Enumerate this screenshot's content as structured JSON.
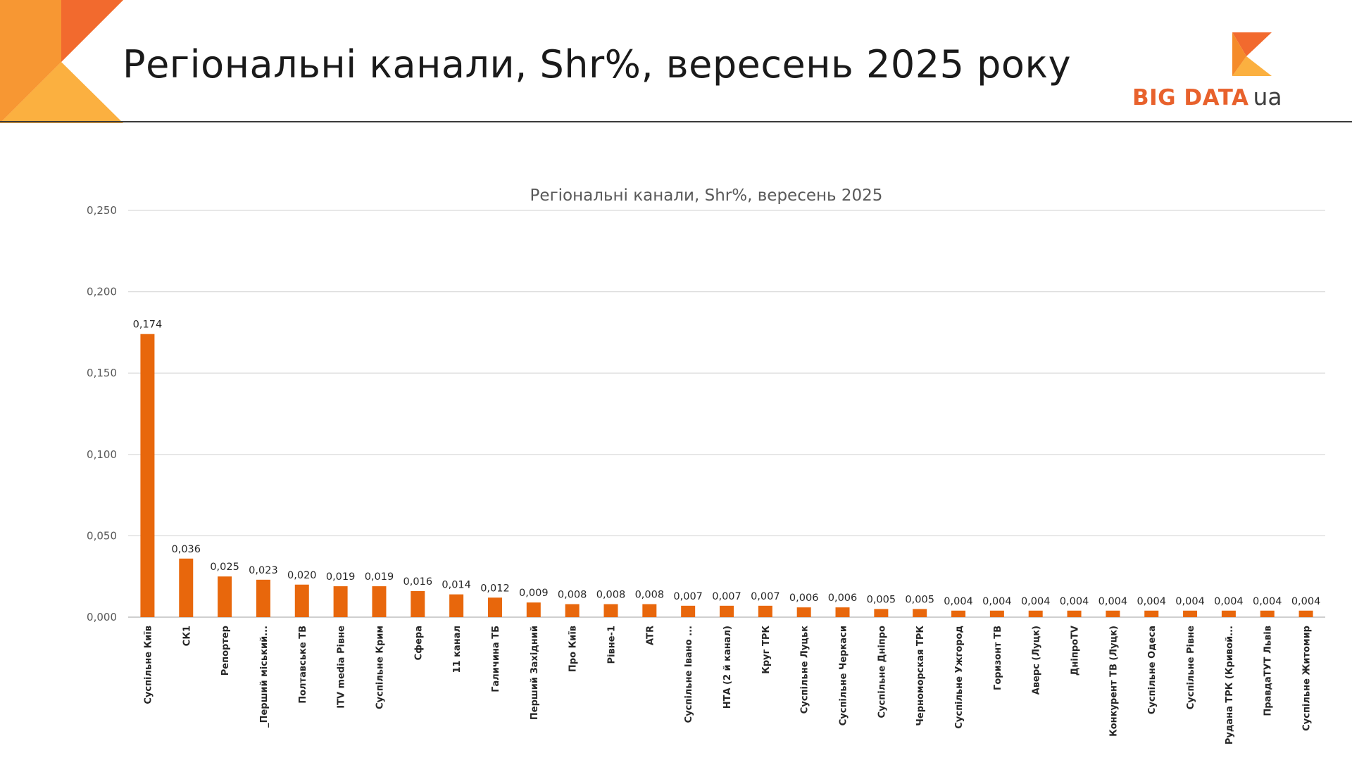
{
  "slide": {
    "title": "Регіональні канали, Shr%, вересень 2025 року"
  },
  "logo": {
    "brand": "BIG DATA",
    "suffix": "ua",
    "colors": {
      "primary": "#e8612c",
      "secondary": "#f7a643",
      "text": "#3d3d3d"
    }
  },
  "chart_data": {
    "type": "bar",
    "title": "Регіональні канали, Shr%, вересень 2025",
    "xlabel": "",
    "ylabel": "",
    "ylim": [
      0,
      0.25
    ],
    "yticks": [
      0,
      0.05,
      0.1,
      0.15,
      0.2,
      0.25
    ],
    "ytick_labels": [
      "0,000",
      "0,050",
      "0,100",
      "0,150",
      "0,200",
      "0,250"
    ],
    "grid": true,
    "bar_color": "#e8670c",
    "categories": [
      "Суспільне Київ",
      "СК1",
      "Репортер",
      "_Перший міський...",
      "Полтавське ТВ",
      "ITV media Рівне",
      "Суспільне Крим",
      "Сфера",
      "11 канал",
      "Галичина ТБ",
      "Перший Західний",
      "Про Київ",
      "Рівне-1",
      "ATR",
      "Суспільне Івано ...",
      "НТА (2 й канал)",
      "Круг ТРК",
      "Суспільне Луцьк",
      "Суспільне Черкаси",
      "Суспільне Дніпро",
      "Черноморская ТРК",
      "Суспільне Ужгород",
      "Горизонт ТВ",
      "Аверс (Луцк)",
      "ДніпроTV",
      "Конкурент ТВ (Луцк)",
      "Суспільне Одеса",
      "Суспільне Рівне",
      "Рудана ТРК (Кривой...",
      "ПравдаТУТ Львів",
      "Суспільне Житомир"
    ],
    "values": [
      0.174,
      0.036,
      0.025,
      0.023,
      0.02,
      0.019,
      0.019,
      0.016,
      0.014,
      0.012,
      0.009,
      0.008,
      0.008,
      0.008,
      0.007,
      0.007,
      0.007,
      0.006,
      0.006,
      0.005,
      0.005,
      0.004,
      0.004,
      0.004,
      0.004,
      0.004,
      0.004,
      0.004,
      0.004,
      0.004,
      0.004
    ],
    "data_labels": [
      "0,174",
      "0,036",
      "0,025",
      "0,023",
      "0,020",
      "0,019",
      "0,019",
      "0,016",
      "0,014",
      "0,012",
      "0,009",
      "0,008",
      "0,008",
      "0,008",
      "0,007",
      "0,007",
      "0,007",
      "0,006",
      "0,006",
      "0,005",
      "0,005",
      "0,004",
      "0,004",
      "0,004",
      "0,004",
      "0,004",
      "0,004",
      "0,004",
      "0,004",
      "0,004",
      "0,004"
    ]
  }
}
